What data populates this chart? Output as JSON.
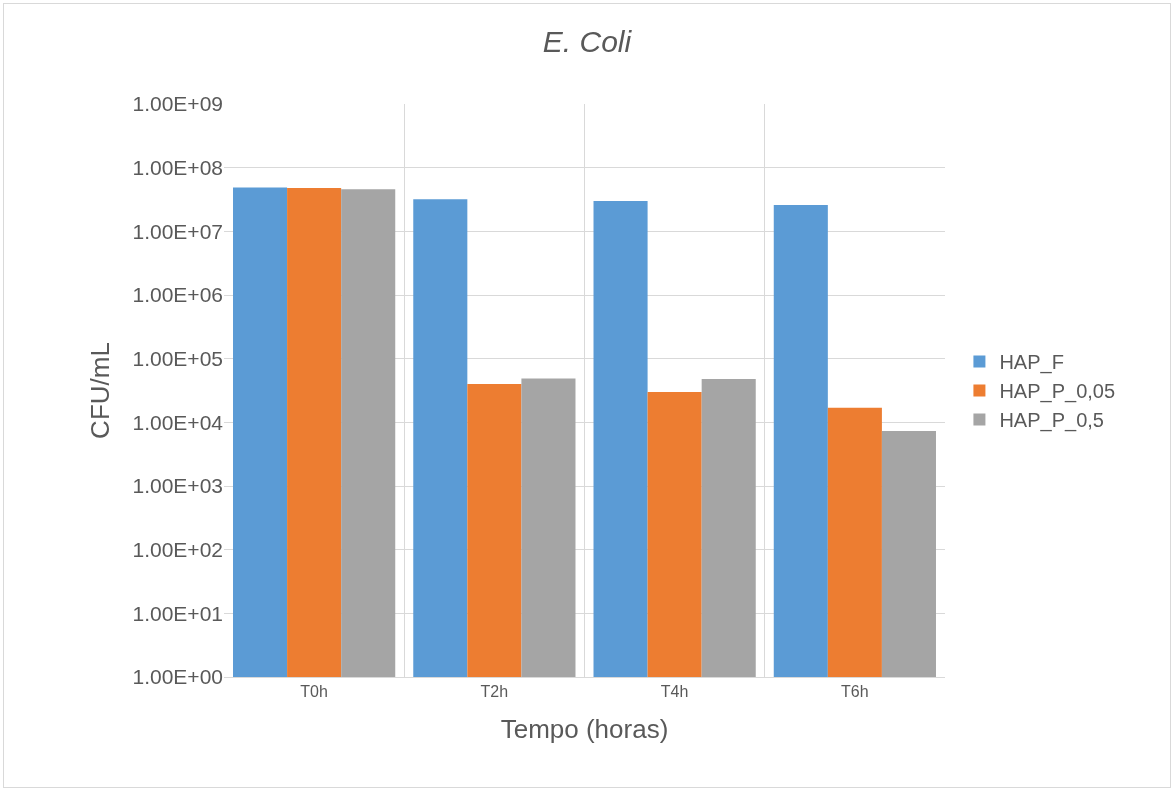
{
  "chart_data": {
    "type": "bar",
    "title": "E. Coli",
    "xlabel": "Tempo (horas)",
    "ylabel": "CFU/mL",
    "categories": [
      "T0h",
      "T2h",
      "T4h",
      "T6h"
    ],
    "series": [
      {
        "name": "HAP_F",
        "color": "#5b9bd5",
        "values": [
          49000000,
          32000000,
          30000000,
          26000000
        ]
      },
      {
        "name": "HAP_P_0,05",
        "color": "#ed7d31",
        "values": [
          48000000,
          40000,
          30000,
          17000
        ]
      },
      {
        "name": "HAP_P_0,5",
        "color": "#a5a5a5",
        "values": [
          46000000,
          49000,
          48000,
          7300
        ]
      }
    ],
    "log": "y",
    "ylim": [
      1,
      1000000000
    ],
    "yticks": [
      {
        "value": 1,
        "label": "1.00E+00"
      },
      {
        "value": 10,
        "label": "1.00E+01"
      },
      {
        "value": 100,
        "label": "1.00E+02"
      },
      {
        "value": 1000,
        "label": "1.00E+03"
      },
      {
        "value": 10000,
        "label": "1.00E+04"
      },
      {
        "value": 100000,
        "label": "1.00E+05"
      },
      {
        "value": 1000000,
        "label": "1.00E+06"
      },
      {
        "value": 10000000,
        "label": "1.00E+07"
      },
      {
        "value": 100000000,
        "label": "1.00E+08"
      },
      {
        "value": 1000000000,
        "label": "1.00E+09"
      }
    ],
    "grid": true,
    "legend": "right"
  }
}
